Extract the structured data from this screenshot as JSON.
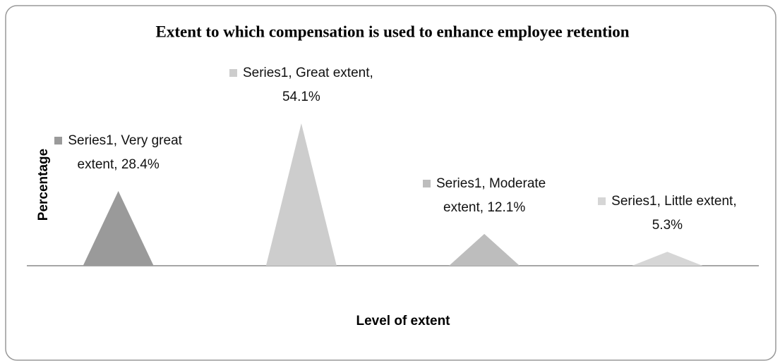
{
  "chart_data": {
    "type": "triangle-bar",
    "title": "Extent to which compensation is used to enhance employee retention",
    "x_label": "Level of extent",
    "y_label": "Percentage",
    "categories": [
      "Very great extent",
      "Great extent",
      "Moderate extent",
      "Little extent"
    ],
    "series": [
      {
        "name": "Series1",
        "colors": [
          "#9a9a9a",
          "#cdcdcd",
          "#bdbdbd",
          "#d6d6d6"
        ],
        "values": [
          28.4,
          54.1,
          12.1,
          5.3
        ],
        "value_labels": [
          "28.4%",
          "54.1%",
          "12.1%",
          "5.3%"
        ]
      }
    ],
    "ylim": [
      0,
      60
    ]
  }
}
